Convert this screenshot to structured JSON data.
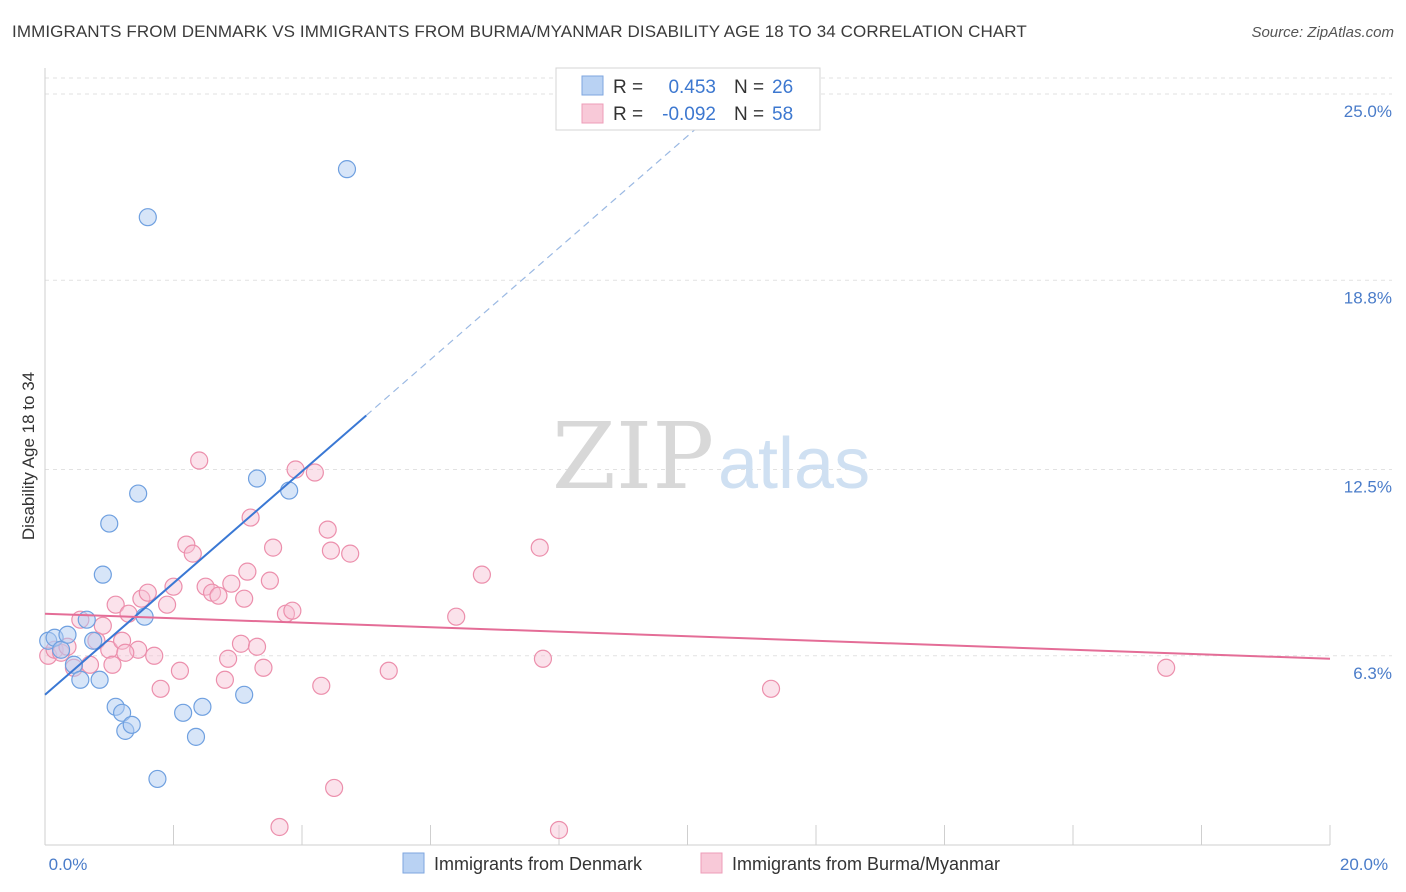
{
  "title": "IMMIGRANTS FROM DENMARK VS IMMIGRANTS FROM BURMA/MYANMAR DISABILITY AGE 18 TO 34 CORRELATION CHART",
  "source": "Source: ZipAtlas.com",
  "watermark": {
    "zip": "ZIP",
    "atlas": "atlas"
  },
  "legend": {
    "r_label": "R =",
    "n_label": "N =",
    "entries": [
      {
        "r": "0.453",
        "n": "26"
      },
      {
        "r": "-0.092",
        "n": "58"
      }
    ]
  },
  "bottom_legend": [
    "Immigrants from Denmark",
    "Immigrants from Burma/Myanmar"
  ],
  "chart_data": {
    "type": "scatter",
    "title": "IMMIGRANTS FROM DENMARK VS IMMIGRANTS FROM BURMA/MYANMAR DISABILITY AGE 18 TO 34 CORRELATION CHART",
    "xlabel": "",
    "ylabel": "Disability Age 18 to 34",
    "xlim": [
      0,
      20
    ],
    "ylim": [
      0,
      25.8
    ],
    "x_tick_labels": [
      "0.0%",
      "20.0%"
    ],
    "y_ticks": [
      6.3,
      12.5,
      18.8,
      25.0
    ],
    "y_tick_labels": [
      "6.3%",
      "12.5%",
      "18.8%",
      "25.0%"
    ],
    "grid": true,
    "legend_position": "top-center",
    "colors": {
      "denmark": "#6fa0e0",
      "burma": "#ec8fac",
      "denmark_line": "#3a78d4",
      "burma_line": "#e46d97"
    },
    "series": [
      {
        "name": "Immigrants from Denmark",
        "r": 0.453,
        "n": 26,
        "trend": {
          "x0": 0,
          "y0": 5.0,
          "x1": 5.0,
          "y1": 14.3,
          "dashed_to_x": 10.3
        },
        "points": [
          [
            0.05,
            6.8
          ],
          [
            0.15,
            6.9
          ],
          [
            0.25,
            6.5
          ],
          [
            0.35,
            7.0
          ],
          [
            0.45,
            6.0
          ],
          [
            0.55,
            5.5
          ],
          [
            0.65,
            7.5
          ],
          [
            0.75,
            6.8
          ],
          [
            0.85,
            5.5
          ],
          [
            0.9,
            9.0
          ],
          [
            1.0,
            10.7
          ],
          [
            1.1,
            4.6
          ],
          [
            1.2,
            4.4
          ],
          [
            1.25,
            3.8
          ],
          [
            1.35,
            4.0
          ],
          [
            1.45,
            11.7
          ],
          [
            1.55,
            7.6
          ],
          [
            1.6,
            20.9
          ],
          [
            1.75,
            2.2
          ],
          [
            2.15,
            4.4
          ],
          [
            2.35,
            3.6
          ],
          [
            2.45,
            4.6
          ],
          [
            3.1,
            5.0
          ],
          [
            3.3,
            12.2
          ],
          [
            3.8,
            11.8
          ],
          [
            4.7,
            22.5
          ]
        ]
      },
      {
        "name": "Immigrants from Burma/Myanmar",
        "r": -0.092,
        "n": 58,
        "trend": {
          "x0": 0,
          "y0": 7.7,
          "x1": 20,
          "y1": 6.2
        },
        "points": [
          [
            0.05,
            6.3
          ],
          [
            0.15,
            6.5
          ],
          [
            0.25,
            6.4
          ],
          [
            0.35,
            6.6
          ],
          [
            0.45,
            5.9
          ],
          [
            0.55,
            7.5
          ],
          [
            0.7,
            6.0
          ],
          [
            0.8,
            6.8
          ],
          [
            0.9,
            7.3
          ],
          [
            1.0,
            6.5
          ],
          [
            1.05,
            6.0
          ],
          [
            1.1,
            8.0
          ],
          [
            1.2,
            6.8
          ],
          [
            1.3,
            7.7
          ],
          [
            1.45,
            6.5
          ],
          [
            1.5,
            8.2
          ],
          [
            1.6,
            8.4
          ],
          [
            1.7,
            6.3
          ],
          [
            1.8,
            5.2
          ],
          [
            1.9,
            8.0
          ],
          [
            2.0,
            8.6
          ],
          [
            2.1,
            5.8
          ],
          [
            2.2,
            10.0
          ],
          [
            2.3,
            9.7
          ],
          [
            2.4,
            12.8
          ],
          [
            2.5,
            8.6
          ],
          [
            2.6,
            8.4
          ],
          [
            2.7,
            8.3
          ],
          [
            2.8,
            5.5
          ],
          [
            2.9,
            8.7
          ],
          [
            3.05,
            6.7
          ],
          [
            3.1,
            8.2
          ],
          [
            3.15,
            9.1
          ],
          [
            3.2,
            10.9
          ],
          [
            3.3,
            6.6
          ],
          [
            3.4,
            5.9
          ],
          [
            3.5,
            8.8
          ],
          [
            3.55,
            9.9
          ],
          [
            3.65,
            0.6
          ],
          [
            3.75,
            7.7
          ],
          [
            3.85,
            7.8
          ],
          [
            3.9,
            12.5
          ],
          [
            4.2,
            12.4
          ],
          [
            4.3,
            5.3
          ],
          [
            4.4,
            10.5
          ],
          [
            4.45,
            9.8
          ],
          [
            4.5,
            1.9
          ],
          [
            4.75,
            9.7
          ],
          [
            5.35,
            5.8
          ],
          [
            6.4,
            7.6
          ],
          [
            6.8,
            9.0
          ],
          [
            7.7,
            9.9
          ],
          [
            7.75,
            6.2
          ],
          [
            8.0,
            0.5
          ],
          [
            11.3,
            5.2
          ],
          [
            17.45,
            5.9
          ],
          [
            2.85,
            6.2
          ],
          [
            1.25,
            6.4
          ]
        ]
      }
    ]
  }
}
